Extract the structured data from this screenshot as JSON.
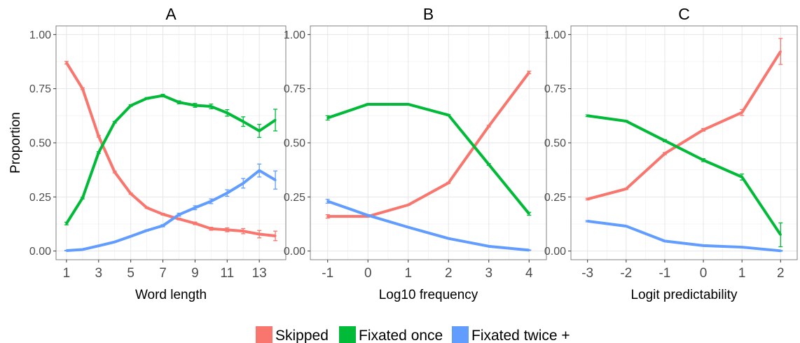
{
  "chart_data": [
    {
      "type": "line",
      "title": "A",
      "xlabel": "Word length",
      "ylabel": "Proportion",
      "x": [
        1,
        2,
        3,
        4,
        5,
        6,
        7,
        8,
        9,
        10,
        11,
        12,
        13,
        14
      ],
      "xticks": [
        1,
        3,
        5,
        7,
        9,
        11,
        13
      ],
      "xlim": [
        0.35,
        14.65
      ],
      "ylim": [
        -0.04,
        1.04
      ],
      "yticks": [
        "0.00",
        "0.25",
        "0.50",
        "0.75",
        "1.00"
      ],
      "grid": true,
      "series": [
        {
          "name": "Skipped",
          "color": "#F8766D",
          "values": [
            0.87,
            0.75,
            0.53,
            0.365,
            0.265,
            0.2,
            0.17,
            0.148,
            0.128,
            0.103,
            0.098,
            0.092,
            0.078,
            0.07
          ],
          "errors": [
            0.006,
            0.004,
            0.004,
            0.004,
            0.003,
            0.003,
            0.004,
            0.004,
            0.006,
            0.007,
            0.009,
            0.012,
            0.017,
            0.022
          ]
        },
        {
          "name": "Fixated once",
          "color": "#00BA38",
          "values": [
            0.127,
            0.245,
            0.455,
            0.595,
            0.672,
            0.705,
            0.718,
            0.687,
            0.673,
            0.668,
            0.638,
            0.598,
            0.555,
            0.605
          ],
          "errors": [
            0.006,
            0.004,
            0.004,
            0.004,
            0.004,
            0.004,
            0.006,
            0.007,
            0.009,
            0.011,
            0.015,
            0.022,
            0.03,
            0.05
          ]
        },
        {
          "name": "Fixated twice +",
          "color": "#619CFF",
          "values": [
            0.002,
            0.007,
            0.024,
            0.042,
            0.068,
            0.095,
            0.117,
            0.168,
            0.2,
            0.23,
            0.268,
            0.313,
            0.372,
            0.328
          ],
          "errors": [
            0.001,
            0.001,
            0.002,
            0.002,
            0.002,
            0.003,
            0.005,
            0.007,
            0.009,
            0.011,
            0.015,
            0.022,
            0.03,
            0.042
          ]
        }
      ]
    },
    {
      "type": "line",
      "title": "B",
      "xlabel": "Log10 frequency",
      "ylabel": "",
      "x": [
        -1,
        0,
        1,
        2,
        3,
        4
      ],
      "xticks": [
        -1,
        0,
        1,
        2,
        3,
        4
      ],
      "xlim": [
        -1.43,
        4.43
      ],
      "ylim": [
        -0.04,
        1.04
      ],
      "yticks": [
        "0.00",
        "0.25",
        "0.50",
        "0.75",
        "1.00"
      ],
      "grid": true,
      "series": [
        {
          "name": "Skipped",
          "color": "#F8766D",
          "values": [
            0.16,
            0.16,
            0.213,
            0.315,
            0.577,
            0.825
          ],
          "errors": [
            0.008,
            0.003,
            0.002,
            0.003,
            0.004,
            0.006
          ]
        },
        {
          "name": "Fixated once",
          "color": "#00BA38",
          "values": [
            0.615,
            0.678,
            0.678,
            0.628,
            0.4,
            0.172
          ],
          "errors": [
            0.01,
            0.003,
            0.002,
            0.003,
            0.004,
            0.007
          ]
        },
        {
          "name": "Fixated twice +",
          "color": "#619CFF",
          "values": [
            0.23,
            0.165,
            0.11,
            0.058,
            0.022,
            0.004
          ],
          "errors": [
            0.009,
            0.003,
            0.002,
            0.002,
            0.002,
            0.001
          ]
        }
      ]
    },
    {
      "type": "line",
      "title": "C",
      "xlabel": "Logit predictability",
      "ylabel": "",
      "x": [
        -3,
        -2,
        -1,
        0,
        1,
        2
      ],
      "xticks": [
        -3,
        -2,
        -1,
        0,
        1,
        2
      ],
      "xlim": [
        -3.43,
        2.43
      ],
      "ylim": [
        -0.04,
        1.04
      ],
      "yticks": [
        "0.00",
        "0.25",
        "0.50",
        "0.75",
        "1.00"
      ],
      "grid": true,
      "series": [
        {
          "name": "Skipped",
          "color": "#F8766D",
          "values": [
            0.24,
            0.287,
            0.45,
            0.56,
            0.64,
            0.922
          ],
          "errors": [
            0.004,
            0.003,
            0.005,
            0.006,
            0.014,
            0.06
          ]
        },
        {
          "name": "Fixated once",
          "color": "#00BA38",
          "values": [
            0.625,
            0.6,
            0.51,
            0.42,
            0.342,
            0.075
          ],
          "errors": [
            0.004,
            0.003,
            0.005,
            0.007,
            0.014,
            0.055
          ]
        },
        {
          "name": "Fixated twice +",
          "color": "#619CFF",
          "values": [
            0.138,
            0.115,
            0.046,
            0.025,
            0.018,
            0.001
          ],
          "errors": [
            0.003,
            0.002,
            0.002,
            0.002,
            0.003,
            0.002
          ]
        }
      ]
    }
  ],
  "legend": {
    "position": "bottom",
    "items": [
      {
        "label": "Skipped",
        "color": "#F8766D"
      },
      {
        "label": "Fixated once",
        "color": "#00BA38"
      },
      {
        "label": "Fixated twice +",
        "color": "#619CFF"
      }
    ]
  }
}
